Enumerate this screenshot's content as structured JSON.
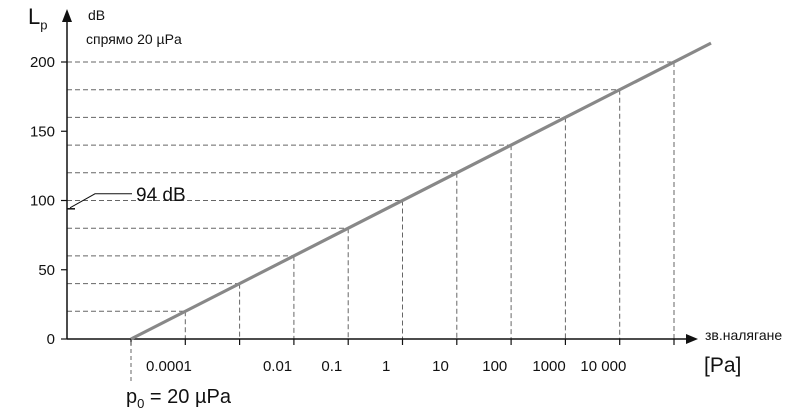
{
  "labels": {
    "lp_main": "L",
    "lp_sub": "p",
    "unit": "dB",
    "reference": "спрямо  20 µPa",
    "marker_94": "94 dB",
    "x_label": "зв.налягане",
    "x_unit": "[Pa]",
    "p0_main": "p",
    "p0_sub": "0",
    "p0_rest": " = 20 µPa"
  },
  "chart_data": {
    "type": "line",
    "xlabel": "зв.налягане",
    "ylabel": "Lp",
    "ylim": [
      0,
      200
    ],
    "x_scale": "log",
    "grid": "dashed reference lines at each decade",
    "y_ticks": [
      0,
      50,
      100,
      150,
      200
    ],
    "y_tick_labels": [
      "0",
      "50",
      "100",
      "150",
      "200"
    ],
    "x_ticks": [
      0.0001,
      0.01,
      0.1,
      1,
      10,
      100,
      1000,
      10000
    ],
    "x_tick_labels": [
      "0.0001",
      "0.01",
      "0.1",
      "1",
      "10",
      "100",
      "1000",
      "10 000"
    ],
    "series": [
      {
        "x": [
          2e-05,
          0.0002,
          0.002,
          0.02,
          0.2,
          2,
          20,
          200,
          2000,
          20000,
          200000,
          2000000
        ],
        "y": [
          0,
          20,
          40,
          60,
          80,
          100,
          120,
          140,
          160,
          180,
          200,
          220
        ]
      }
    ],
    "annotations": [
      "94 dB",
      "p0 = 20 µPa"
    ],
    "colors": {
      "line": "#888888",
      "axis": "#111111",
      "grid": "#666666"
    }
  }
}
